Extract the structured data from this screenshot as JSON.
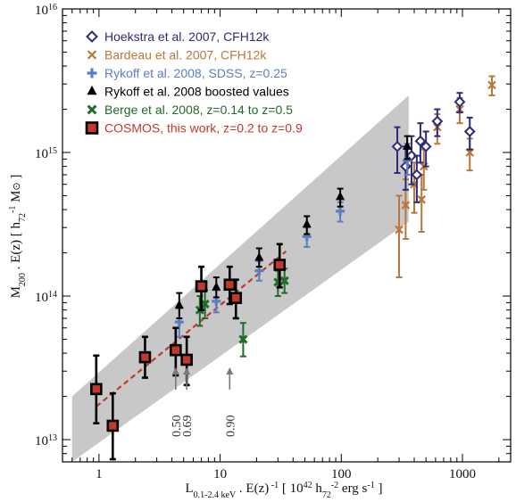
{
  "chart_data": {
    "type": "scatter",
    "xscale": "log",
    "yscale": "log",
    "xlim": [
      0.5,
      2500
    ],
    "ylim": [
      7000000000000,
      10000000000000000
    ],
    "x_ticks": [
      {
        "value": 1,
        "label": "1"
      },
      {
        "value": 10,
        "label": "10"
      },
      {
        "value": 100,
        "label": "100"
      },
      {
        "value": 1000,
        "label": "1000"
      }
    ],
    "y_ticks": [
      {
        "value": 10000000000000,
        "base": "10",
        "exp": "13"
      },
      {
        "value": 100000000000000,
        "base": "10",
        "exp": "14"
      },
      {
        "value": 1000000000000000,
        "base": "10",
        "exp": "15"
      },
      {
        "value": 10000000000000000,
        "base": "10",
        "exp": "16"
      }
    ],
    "xlabel": {
      "main": "L",
      "main_sub": "0.1-2.4 keV",
      "mid": " . E(z)",
      "mid_sup": " -1",
      "unit_open": "   [ 10",
      "unit_sup1": "42",
      "unit_mid": " h",
      "unit_sub": "72",
      "unit_sup2": "-2",
      "unit_close": " erg s",
      "unit_sup3": "-1",
      "unit_end": " ]"
    },
    "ylabel": {
      "main": "M",
      "main_sub": "200",
      "mid": " . E(z)    [ h",
      "unit_sub": "72",
      "unit_sup": "-1",
      "unit_end": " M",
      "sun": "⊙",
      "close": " ]"
    },
    "colors": {
      "hoekstra": "#2e2a7a",
      "bardeau": "#b8763a",
      "rykoff": "#5a7fc0",
      "rykoff_boost": "#000000",
      "berge": "#1f6b2a",
      "cosmos_fill": "#c0392b",
      "cosmos_edge": "#000000",
      "fit_line": "#c0392b",
      "band": "#c8c8c8",
      "arrow": "#7a7a7a"
    },
    "band": {
      "upper": [
        [
          0.6,
          20000000000000
        ],
        [
          360,
          2500000000000000
        ]
      ],
      "lower": [
        [
          0.6,
          7000000000000
        ],
        [
          360,
          330000000000000
        ]
      ]
    },
    "fit_line": {
      "x": [
        0.95,
        35
      ],
      "y": [
        17000000000000,
        205000000000000
      ]
    },
    "series": [
      {
        "name": "Hoekstra et al. 2007, CFH12k",
        "key": "hoekstra",
        "marker": "diamond",
        "points": [
          {
            "x": 290,
            "y": 1100000000000000,
            "ylo": 720000000000000,
            "yhi": 1500000000000000
          },
          {
            "x": 340,
            "y": 800000000000000,
            "ylo": 550000000000000,
            "yhi": 1100000000000000
          },
          {
            "x": 380,
            "y": 950000000000000,
            "ylo": 600000000000000,
            "yhi": 1300000000000000
          },
          {
            "x": 420,
            "y": 700000000000000,
            "ylo": 450000000000000,
            "yhi": 950000000000000
          },
          {
            "x": 450,
            "y": 1200000000000000,
            "ylo": 850000000000000,
            "yhi": 1600000000000000
          },
          {
            "x": 500,
            "y": 1100000000000000,
            "ylo": 800000000000000,
            "yhi": 1400000000000000
          },
          {
            "x": 620,
            "y": 1650000000000000,
            "ylo": 1300000000000000,
            "yhi": 2000000000000000
          },
          {
            "x": 950,
            "y": 2250000000000000,
            "ylo": 1900000000000000,
            "yhi": 2600000000000000
          },
          {
            "x": 1150,
            "y": 1400000000000000,
            "ylo": 1050000000000000,
            "yhi": 1750000000000000
          }
        ]
      },
      {
        "name": "Bardeau et al. 2007, CFH12k",
        "key": "bardeau",
        "marker": "x",
        "points": [
          {
            "x": 300,
            "y": 290000000000000,
            "ylo": 135000000000000,
            "yhi": 500000000000000
          },
          {
            "x": 340,
            "y": 430000000000000,
            "ylo": 250000000000000,
            "yhi": 650000000000000
          },
          {
            "x": 400,
            "y": 600000000000000,
            "ylo": 380000000000000,
            "yhi": 850000000000000
          },
          {
            "x": 460,
            "y": 470000000000000,
            "ylo": 280000000000000,
            "yhi": 700000000000000
          },
          {
            "x": 480,
            "y": 800000000000000,
            "ylo": 550000000000000,
            "yhi": 1050000000000000
          },
          {
            "x": 620,
            "y": 1500000000000000,
            "ylo": 1150000000000000,
            "yhi": 1850000000000000
          },
          {
            "x": 950,
            "y": 2000000000000000,
            "ylo": 1600000000000000,
            "yhi": 2400000000000000
          },
          {
            "x": 1150,
            "y": 1000000000000000,
            "ylo": 750000000000000,
            "yhi": 1250000000000000
          },
          {
            "x": 1750,
            "y": 2950000000000000,
            "ylo": 2500000000000000,
            "yhi": 3400000000000000
          }
        ]
      },
      {
        "name": "Rykoff et al. 2008, SDSS, z=0.25",
        "key": "rykoff",
        "marker": "plus",
        "points": [
          {
            "x": 4.6,
            "y": 66000000000000,
            "ylo": 52000000000000,
            "yhi": 82000000000000
          },
          {
            "x": 9.3,
            "y": 92000000000000,
            "ylo": 77000000000000,
            "yhi": 110000000000000
          },
          {
            "x": 21,
            "y": 150000000000000,
            "ylo": 128000000000000,
            "yhi": 175000000000000
          },
          {
            "x": 52,
            "y": 260000000000000,
            "ylo": 220000000000000,
            "yhi": 300000000000000
          },
          {
            "x": 98,
            "y": 390000000000000,
            "ylo": 330000000000000,
            "yhi": 450000000000000
          },
          {
            "x": 350,
            "y": 880000000000000,
            "ylo": 700000000000000,
            "yhi": 1150000000000000
          }
        ]
      },
      {
        "name": "Rykoff et al. 2008 boosted values",
        "key": "rykoff_boost",
        "marker": "triangle",
        "points": [
          {
            "x": 4.6,
            "y": 86000000000000,
            "ylo": 70000000000000,
            "yhi": 105000000000000
          },
          {
            "x": 9.3,
            "y": 115000000000000,
            "ylo": 98000000000000,
            "yhi": 135000000000000
          },
          {
            "x": 21,
            "y": 185000000000000,
            "ylo": 160000000000000,
            "yhi": 215000000000000
          },
          {
            "x": 52,
            "y": 315000000000000,
            "ylo": 270000000000000,
            "yhi": 360000000000000
          },
          {
            "x": 98,
            "y": 490000000000000,
            "ylo": 420000000000000,
            "yhi": 560000000000000
          },
          {
            "x": 350,
            "y": 1100000000000000,
            "ylo": 900000000000000,
            "yhi": 1300000000000000
          }
        ]
      },
      {
        "name": "Berge et al. 2008, z=0.14 to z=0.5",
        "key": "berge",
        "marker": "cross",
        "points": [
          {
            "x": 6.8,
            "y": 80000000000000,
            "ylo": 62000000000000,
            "yhi": 100000000000000
          },
          {
            "x": 7.5,
            "y": 88000000000000,
            "ylo": 70000000000000,
            "yhi": 110000000000000
          },
          {
            "x": 15.5,
            "y": 50000000000000,
            "ylo": 38000000000000,
            "yhi": 65000000000000
          },
          {
            "x": 30,
            "y": 125000000000000,
            "ylo": 100000000000000,
            "yhi": 150000000000000
          },
          {
            "x": 34,
            "y": 128000000000000,
            "ylo": 105000000000000,
            "yhi": 155000000000000
          }
        ]
      },
      {
        "name": "COSMOS, this work, z=0.2 to z=0.9",
        "key": "cosmos",
        "marker": "square",
        "points": [
          {
            "x": 0.95,
            "y": 22500000000000,
            "ylo": 13000000000000,
            "yhi": 38500000000000
          },
          {
            "x": 1.3,
            "y": 12500000000000,
            "ylo": 7300000000000,
            "yhi": 21000000000000
          },
          {
            "x": 2.4,
            "y": 37500000000000,
            "ylo": 27000000000000,
            "yhi": 52000000000000
          },
          {
            "x": 4.3,
            "y": 42000000000000,
            "ylo": 28000000000000,
            "yhi": 60000000000000
          },
          {
            "x": 5.3,
            "y": 36000000000000,
            "ylo": 24000000000000,
            "yhi": 52000000000000
          },
          {
            "x": 7.0,
            "y": 117000000000000,
            "ylo": 80000000000000,
            "yhi": 160000000000000
          },
          {
            "x": 12,
            "y": 120000000000000,
            "ylo": 88000000000000,
            "yhi": 160000000000000
          },
          {
            "x": 13.5,
            "y": 97000000000000,
            "ylo": 70000000000000,
            "yhi": 130000000000000
          },
          {
            "x": 31,
            "y": 165000000000000,
            "ylo": 115000000000000,
            "yhi": 230000000000000
          }
        ]
      }
    ],
    "annotations": [
      {
        "x": 4.3,
        "label": "0.50"
      },
      {
        "x": 5.3,
        "label": "0.69"
      },
      {
        "x": 12,
        "label": "0.90"
      }
    ]
  }
}
